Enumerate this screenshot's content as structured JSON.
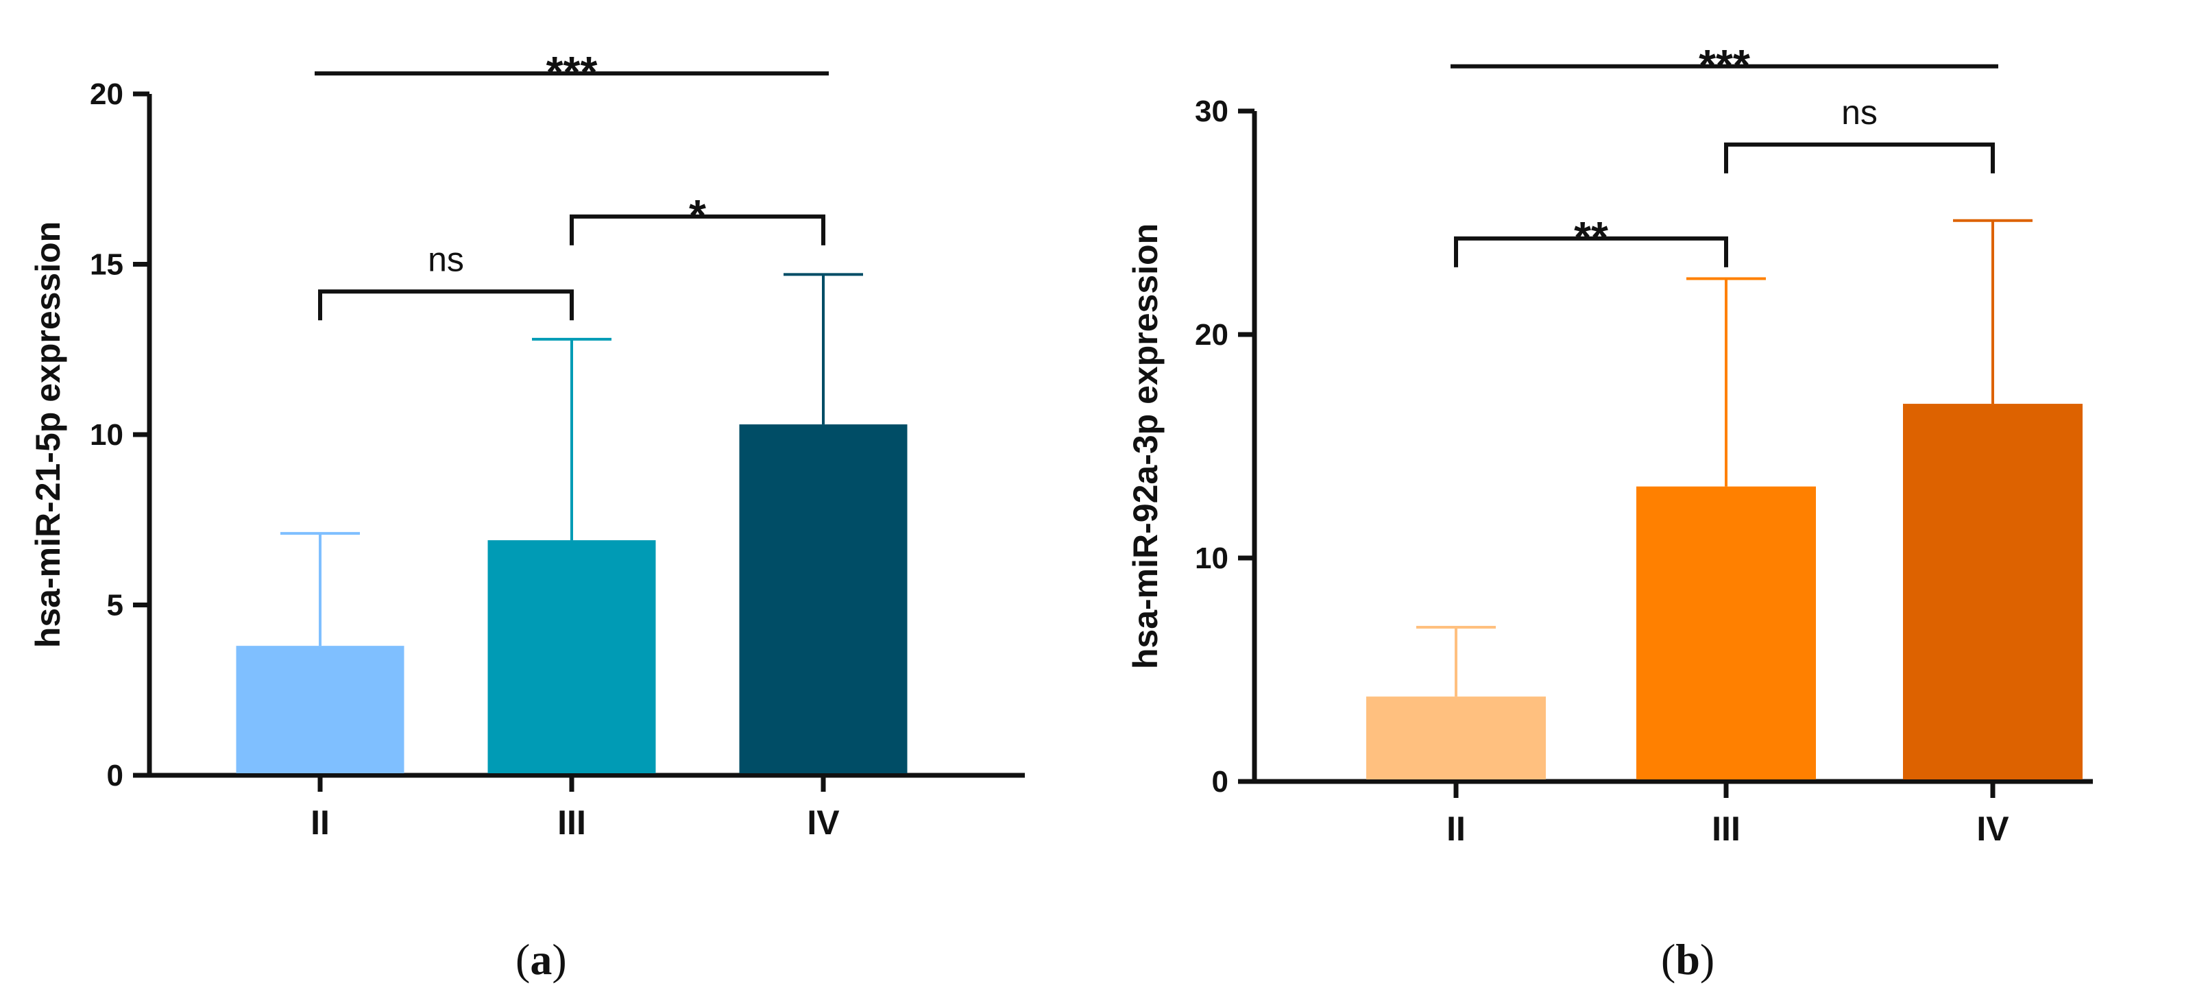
{
  "chart_data": [
    {
      "type": "bar",
      "panel": "a",
      "ylabel": "hsa-miR-21-5p expression",
      "xlabel": "",
      "categories": [
        "II",
        "III",
        "IV"
      ],
      "values": [
        3.8,
        6.9,
        10.3
      ],
      "error_upper": [
        7.1,
        12.8,
        14.7
      ],
      "bar_colors": [
        "#7fbfff",
        "#009bb5",
        "#004d66"
      ],
      "ylim": [
        0,
        20
      ],
      "yticks": [
        0,
        5,
        10,
        15,
        20
      ],
      "ytick_labels": [
        "0",
        "5",
        "10",
        "15",
        "20"
      ],
      "significance": [
        {
          "from": 0,
          "to": 1,
          "label": "ns",
          "level": 14.2
        },
        {
          "from": 1,
          "to": 2,
          "label": "*",
          "level": 16.4
        },
        {
          "from": 0,
          "to": 2,
          "label": "***",
          "level": 20.6
        }
      ],
      "caption_letter": "a"
    },
    {
      "type": "bar",
      "panel": "b",
      "ylabel": "hsa-miR-92a-3p expression",
      "xlabel": "",
      "categories": [
        "II",
        "III",
        "IV"
      ],
      "values": [
        3.8,
        13.2,
        16.9
      ],
      "error_upper": [
        6.9,
        22.5,
        25.1
      ],
      "bar_colors": [
        "#ffc07f",
        "#ff8000",
        "#dd6200"
      ],
      "ylim": [
        0,
        30
      ],
      "yticks": [
        0,
        10,
        20,
        30
      ],
      "ytick_labels": [
        "0",
        "10",
        "20",
        "30"
      ],
      "significance": [
        {
          "from": 0,
          "to": 1,
          "label": "**",
          "level": 24.3
        },
        {
          "from": 1,
          "to": 2,
          "label": "ns",
          "level": 28.5
        },
        {
          "from": 0,
          "to": 2,
          "label": "***",
          "level": 32.0
        }
      ],
      "caption_letter": "b"
    }
  ]
}
